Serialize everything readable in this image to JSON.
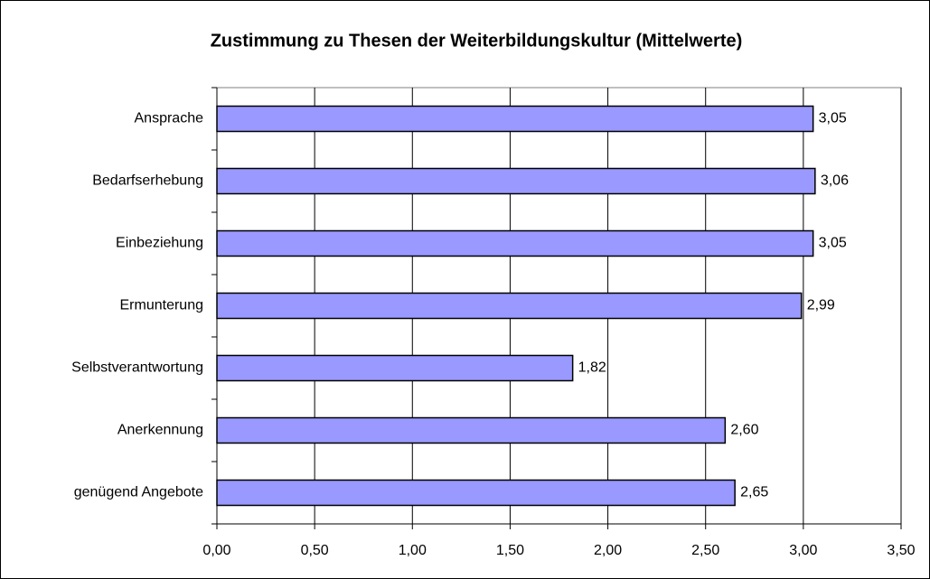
{
  "chart_data": {
    "type": "barh",
    "title": "Zustimmung zu Thesen der Weiterbildungskultur (Mittelwerte)",
    "categories": [
      "Ansprache",
      "Bedarfserhebung",
      "Einbeziehung",
      "Ermunterung",
      "Selbstverantwortung",
      "Anerkennung",
      "genügend Angebote"
    ],
    "values": [
      3.05,
      3.06,
      3.05,
      2.99,
      1.82,
      2.6,
      2.65
    ],
    "value_labels": [
      "3,05",
      "3,06",
      "3,05",
      "2,99",
      "1,82",
      "2,60",
      "2,65"
    ],
    "color": "#9999ff",
    "xlim": [
      0,
      3.5
    ],
    "xticks": [
      {
        "value": 0,
        "label": "0,00"
      },
      {
        "value": 0.5,
        "label": "0,50"
      },
      {
        "value": 1,
        "label": "1,00"
      },
      {
        "value": 1.5,
        "label": "1,50"
      },
      {
        "value": 2,
        "label": "2,00"
      },
      {
        "value": 2.5,
        "label": "2,50"
      },
      {
        "value": 3,
        "label": "3,00"
      },
      {
        "value": 3.5,
        "label": "3,50"
      }
    ],
    "grid": true
  }
}
